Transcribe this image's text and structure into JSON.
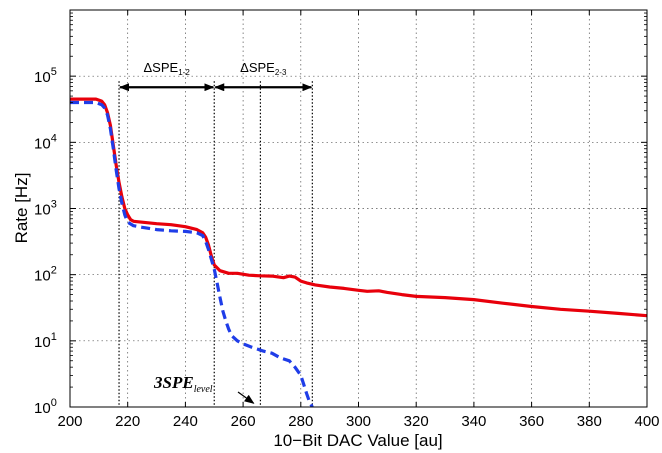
{
  "chart_data": {
    "type": "line",
    "xlabel": "10−Bit DAC Value [au]",
    "ylabel": "Rate [Hz]",
    "xlim": [
      200,
      400
    ],
    "ylim": [
      1,
      1000000
    ],
    "yscale": "log",
    "grid": true,
    "x_ticks": [
      "200",
      "220",
      "240",
      "260",
      "280",
      "300",
      "320",
      "340",
      "360",
      "380",
      "400"
    ],
    "x_tick_values": [
      200,
      220,
      240,
      260,
      280,
      300,
      320,
      340,
      360,
      380,
      400
    ],
    "y_ticks": [
      {
        "base": "10",
        "exp": "0",
        "value": 1
      },
      {
        "base": "10",
        "exp": "1",
        "value": 10
      },
      {
        "base": "10",
        "exp": "2",
        "value": 100
      },
      {
        "base": "10",
        "exp": "3",
        "value": 1000
      },
      {
        "base": "10",
        "exp": "4",
        "value": 10000
      },
      {
        "base": "10",
        "exp": "5",
        "value": 100000
      }
    ],
    "series": [
      {
        "color": "#e8000b",
        "style": "solid",
        "points": [
          [
            200,
            45000
          ],
          [
            206,
            45000
          ],
          [
            209,
            45000
          ],
          [
            211,
            42000
          ],
          [
            212,
            37000
          ],
          [
            213,
            28000
          ],
          [
            214,
            18000
          ],
          [
            215,
            9000
          ],
          [
            216,
            4500
          ],
          [
            217,
            2500
          ],
          [
            218,
            1500
          ],
          [
            219,
            1000
          ],
          [
            220,
            800
          ],
          [
            221,
            680
          ],
          [
            222,
            640
          ],
          [
            225,
            620
          ],
          [
            230,
            590
          ],
          [
            235,
            570
          ],
          [
            240,
            530
          ],
          [
            244,
            480
          ],
          [
            246,
            430
          ],
          [
            247,
            370
          ],
          [
            248,
            280
          ],
          [
            249,
            190
          ],
          [
            250,
            140
          ],
          [
            252,
            115
          ],
          [
            255,
            105
          ],
          [
            258,
            105
          ],
          [
            262,
            98
          ],
          [
            266,
            96
          ],
          [
            270,
            95
          ],
          [
            274,
            90
          ],
          [
            276,
            95
          ],
          [
            278,
            92
          ],
          [
            280,
            80
          ],
          [
            282,
            75
          ],
          [
            285,
            70
          ],
          [
            290,
            65
          ],
          [
            295,
            62
          ],
          [
            300,
            58
          ],
          [
            303,
            56
          ],
          [
            307,
            57
          ],
          [
            310,
            54
          ],
          [
            315,
            50
          ],
          [
            320,
            47
          ],
          [
            330,
            45
          ],
          [
            340,
            42
          ],
          [
            350,
            37
          ],
          [
            360,
            33
          ],
          [
            370,
            30
          ],
          [
            380,
            28
          ],
          [
            390,
            26
          ],
          [
            400,
            24
          ]
        ]
      },
      {
        "color": "#1f3de8",
        "style": "dashed",
        "points": [
          [
            200,
            40000
          ],
          [
            206,
            40000
          ],
          [
            209,
            40000
          ],
          [
            211,
            37000
          ],
          [
            212,
            33000
          ],
          [
            213,
            26000
          ],
          [
            214,
            16000
          ],
          [
            215,
            8000
          ],
          [
            216,
            3800
          ],
          [
            217,
            2000
          ],
          [
            218,
            1200
          ],
          [
            219,
            800
          ],
          [
            220,
            620
          ],
          [
            222,
            550
          ],
          [
            225,
            520
          ],
          [
            230,
            480
          ],
          [
            235,
            460
          ],
          [
            240,
            450
          ],
          [
            244,
            430
          ],
          [
            246,
            390
          ],
          [
            247,
            320
          ],
          [
            248,
            240
          ],
          [
            249,
            170
          ],
          [
            250,
            120
          ],
          [
            251,
            75
          ],
          [
            252,
            45
          ],
          [
            253,
            28
          ],
          [
            254,
            20
          ],
          [
            255,
            15
          ],
          [
            256,
            12
          ],
          [
            258,
            10
          ],
          [
            260,
            9
          ],
          [
            263,
            8
          ],
          [
            265,
            7.5
          ],
          [
            267,
            7
          ],
          [
            270,
            6.5
          ],
          [
            273,
            5.5
          ],
          [
            276,
            5
          ],
          [
            278,
            4
          ],
          [
            280,
            3
          ],
          [
            281,
            2.2
          ],
          [
            282,
            1.6
          ],
          [
            283,
            1.2
          ],
          [
            284,
            1
          ]
        ]
      }
    ],
    "vlines": [
      217,
      250,
      266,
      284
    ],
    "annotations": {
      "dspe12": {
        "label": "ΔSPE",
        "sub": "1-2",
        "from": 217,
        "to": 250,
        "y": 68000
      },
      "dspe23": {
        "label": "ΔSPE",
        "sub": "2-3",
        "from": 250,
        "to": 284,
        "y": 68000
      },
      "level": {
        "label": "3SPE",
        "sub": "level",
        "arrow_to": [
          264,
          1.1
        ]
      }
    }
  }
}
